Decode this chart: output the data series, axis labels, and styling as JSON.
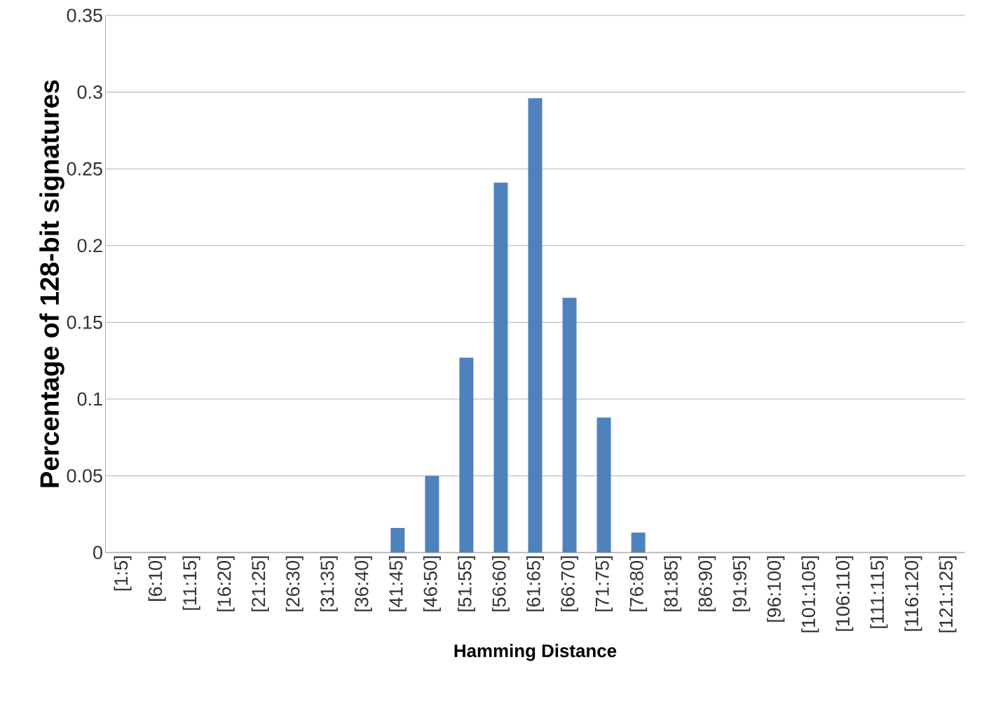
{
  "chart_data": {
    "type": "bar",
    "xlabel": "Hamming Distance",
    "ylabel": "Percentage of 128-bit signatures",
    "categories": [
      "[1:5]",
      "[6:10]",
      "[11:15]",
      "[16:20]",
      "[21:25]",
      "[26:30]",
      "[31:35]",
      "[36:40]",
      "[41:45]",
      "[46:50]",
      "[51:55]",
      "[56:60]",
      "[61:65]",
      "[66:70]",
      "[71:75]",
      "[76:80]",
      "[81:85]",
      "[86:90]",
      "[91:95]",
      "[96:100]",
      "[101:105]",
      "[106:110]",
      "[111:115]",
      "[116:120]",
      "[121:125]"
    ],
    "values": [
      0,
      0,
      0,
      0,
      0,
      0,
      0,
      0,
      0.016,
      0.05,
      0.127,
      0.241,
      0.296,
      0.166,
      0.088,
      0.013,
      0,
      0,
      0,
      0,
      0,
      0,
      0,
      0,
      0
    ],
    "color": "#4f81bd",
    "ylim": [
      0,
      0.35
    ],
    "yticks": [
      0,
      0.05,
      0.1,
      0.15,
      0.2,
      0.25,
      0.3,
      0.35
    ],
    "grid": "y"
  }
}
